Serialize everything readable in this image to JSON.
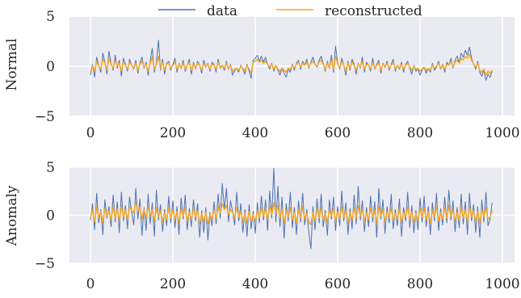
{
  "legend": {
    "placement": "top-center",
    "entries": [
      {
        "label": "data",
        "color": "#4c72b0"
      },
      {
        "label": "reconstructed",
        "color": "#f5a623"
      }
    ]
  },
  "style": {
    "axes_background": "#eaeaf2",
    "grid_color": "#ffffff",
    "data_color": "#4c72b0",
    "reconstructed_color": "#f5a623"
  },
  "chart_data": [
    {
      "type": "line",
      "ylabel": "Normal",
      "xlabel": "",
      "xlim": [
        0,
        1000
      ],
      "ylim": [
        -5,
        5
      ],
      "x_ticks": [
        0,
        200,
        400,
        600,
        800,
        1000
      ],
      "y_ticks": [
        -5,
        0,
        5
      ],
      "x_tick_labels": [
        "0",
        "200",
        "400",
        "600",
        "800",
        "1000"
      ],
      "y_tick_labels": [
        "−5",
        "0",
        "5"
      ],
      "grid": true,
      "x_step": 5,
      "series": [
        {
          "name": "data",
          "values": [
            -0.9,
            0.2,
            -1.1,
            0.9,
            0.1,
            -0.6,
            1.3,
            0.4,
            -0.8,
            1.5,
            0.3,
            -0.4,
            1.1,
            -0.2,
            0.6,
            -1.0,
            0.8,
            0.2,
            -0.5,
            0.7,
            0.1,
            -0.3,
            0.6,
            -0.7,
            0.3,
            0.9,
            -0.2,
            0.4,
            -0.9,
            0.5,
            1.8,
            -0.6,
            0.4,
            2.6,
            -0.4,
            0.7,
            -0.8,
            0.3,
            0.5,
            -0.4,
            0.2,
            0.8,
            -0.6,
            0.3,
            -0.2,
            0.6,
            -0.5,
            0.1,
            0.7,
            -0.8,
            0.4,
            -0.3,
            0.5,
            0.1,
            -0.7,
            0.6,
            -0.1,
            0.3,
            -0.5,
            0.4,
            0.2,
            -0.6,
            0.7,
            -0.2,
            0.1,
            -0.4,
            0.5,
            -0.3,
            0.2,
            -0.9,
            -0.4,
            -0.2,
            -0.6,
            0.1,
            -0.3,
            -0.8,
            0.2,
            -0.5,
            -1.2,
            0.6,
            0.8,
            1.1,
            0.5,
            1.0,
            0.4,
            0.9,
            0.2,
            -0.3,
            0.3,
            -0.5,
            0.1,
            -0.4,
            -0.9,
            -0.2,
            -0.7,
            -1.1,
            -0.3,
            -0.6,
            0.2,
            -0.4,
            0.3,
            0.6,
            -0.3,
            0.5,
            0.1,
            0.7,
            -0.2,
            0.4,
            0.9,
            0.2,
            -0.1,
            0.6,
            1.0,
            0.3,
            -0.5,
            0.5,
            -0.2,
            1.1,
            -0.6,
            2.0,
            0.4,
            -0.3,
            0.8,
            0.1,
            -0.9,
            0.5,
            -0.4,
            0.7,
            0.2,
            -0.8,
            0.3,
            -0.2,
            0.9,
            -0.6,
            0.4,
            0.1,
            -0.5,
            0.8,
            -0.3,
            0.2,
            0.6,
            -0.7,
            0.3,
            -0.1,
            0.5,
            -0.4,
            0.2,
            0.7,
            -0.5,
            0.1,
            -0.3,
            0.4,
            -0.6,
            0.2,
            0.5,
            -0.2,
            -0.8,
            0.1,
            -0.5,
            -0.3,
            -0.9,
            -0.4,
            -0.1,
            -0.7,
            -0.2,
            -0.6,
            0.3,
            -0.4,
            -0.1,
            0.5,
            -0.3,
            0.2,
            -0.6,
            0.4,
            0.1,
            0.8,
            -0.2,
            0.6,
            1.0,
            0.4,
            1.3,
            0.9,
            1.6,
            1.1,
            1.9,
            0.8,
            0.2,
            -0.3,
            0.5,
            -0.6,
            -1.0,
            -0.4,
            -1.4,
            -0.8,
            -1.1,
            -0.5
          ],
          "color": "#4c72b0"
        },
        {
          "name": "reconstructed",
          "values": [
            -0.6,
            0.1,
            -0.5,
            0.5,
            0.0,
            -0.3,
            0.7,
            0.3,
            -0.4,
            0.8,
            0.2,
            -0.2,
            0.6,
            0.0,
            0.3,
            -0.5,
            0.4,
            0.1,
            -0.3,
            0.4,
            0.1,
            -0.2,
            0.3,
            -0.4,
            0.2,
            0.5,
            -0.1,
            0.2,
            -0.5,
            0.3,
            0.9,
            -0.3,
            0.2,
            1.0,
            -0.2,
            0.4,
            -0.4,
            0.2,
            0.3,
            -0.2,
            0.1,
            0.4,
            -0.3,
            0.2,
            -0.1,
            0.3,
            -0.3,
            0.1,
            0.4,
            -0.4,
            0.2,
            -0.2,
            0.3,
            0.1,
            -0.4,
            0.3,
            0.0,
            0.2,
            -0.3,
            0.2,
            0.1,
            -0.3,
            0.4,
            -0.1,
            0.1,
            -0.2,
            0.3,
            -0.2,
            0.1,
            -0.5,
            -0.3,
            -0.2,
            -0.4,
            0.0,
            -0.2,
            -0.5,
            0.1,
            -0.3,
            -0.7,
            0.4,
            0.5,
            0.7,
            0.4,
            0.6,
            0.3,
            0.5,
            0.2,
            -0.1,
            0.2,
            -0.3,
            0.1,
            -0.3,
            -0.5,
            -0.2,
            -0.4,
            -0.6,
            -0.2,
            -0.3,
            0.1,
            -0.2,
            0.2,
            0.4,
            -0.1,
            0.3,
            0.1,
            0.4,
            -0.1,
            0.3,
            0.5,
            0.2,
            0.0,
            0.4,
            0.6,
            0.2,
            -0.3,
            0.3,
            -0.1,
            0.6,
            -0.3,
            1.0,
            0.3,
            -0.2,
            0.5,
            0.1,
            -0.5,
            0.3,
            -0.2,
            0.4,
            0.1,
            -0.4,
            0.2,
            -0.1,
            0.5,
            -0.3,
            0.2,
            0.1,
            -0.3,
            0.4,
            -0.2,
            0.1,
            0.3,
            -0.4,
            0.2,
            0.0,
            0.3,
            -0.2,
            0.1,
            0.4,
            -0.3,
            0.1,
            -0.2,
            0.2,
            -0.3,
            0.1,
            0.3,
            -0.1,
            -0.4,
            0.0,
            -0.3,
            -0.2,
            -0.5,
            -0.3,
            -0.1,
            -0.4,
            -0.2,
            -0.4,
            0.1,
            -0.2,
            0.0,
            0.3,
            -0.2,
            0.1,
            -0.3,
            0.2,
            0.1,
            0.5,
            -0.1,
            0.4,
            0.6,
            0.3,
            0.8,
            0.6,
            1.0,
            0.8,
            1.2,
            0.6,
            0.2,
            -0.1,
            0.3,
            -0.4,
            -0.6,
            -0.3,
            -0.9,
            -0.5,
            -0.7,
            -0.4
          ],
          "color": "#f5a623"
        }
      ]
    },
    {
      "type": "line",
      "ylabel": "Anomaly",
      "xlabel": "",
      "xlim": [
        0,
        1000
      ],
      "ylim": [
        -5,
        5
      ],
      "x_ticks": [
        0,
        200,
        400,
        600,
        800,
        1000
      ],
      "y_ticks": [
        -5,
        0,
        5
      ],
      "x_tick_labels": [
        "0",
        "200",
        "400",
        "600",
        "800",
        "1000"
      ],
      "y_tick_labels": [
        "−5",
        "0",
        "5"
      ],
      "grid": true,
      "x_step": 5,
      "series": [
        {
          "name": "data",
          "values": [
            -0.5,
            1.2,
            -1.5,
            2.3,
            -0.8,
            0.6,
            -2.0,
            1.6,
            -0.3,
            0.9,
            -1.2,
            2.1,
            -0.7,
            1.4,
            -1.8,
            2.4,
            -0.6,
            1.0,
            -1.4,
            1.9,
            0.3,
            -1.0,
            2.8,
            -0.4,
            1.7,
            -2.1,
            0.8,
            -1.6,
            2.2,
            -0.9,
            1.3,
            -2.2,
            2.6,
            -0.5,
            1.1,
            -1.7,
            0.6,
            -1.1,
            2.0,
            -0.8,
            1.5,
            -1.3,
            0.9,
            -2.0,
            1.8,
            -0.4,
            2.1,
            -1.5,
            0.7,
            -1.2,
            1.6,
            -0.6,
            1.2,
            -2.3,
            0.5,
            -1.8,
            0.8,
            -2.6,
            0.3,
            -1.1,
            1.4,
            -0.9,
            2.2,
            -0.3,
            3.3,
            0.6,
            2.8,
            -0.7,
            1.5,
            0.4,
            -1.0,
            2.4,
            -0.6,
            1.2,
            -1.8,
            0.6,
            -2.2,
            1.1,
            -1.4,
            0.4,
            -1.9,
            1.3,
            -0.8,
            2.0,
            -0.5,
            1.6,
            -1.6,
            2.5,
            -0.3,
            4.9,
            -0.7,
            3.0,
            -1.2,
            1.9,
            -2.4,
            1.2,
            -0.6,
            2.4,
            -1.3,
            0.8,
            -2.0,
            1.5,
            -0.7,
            2.3,
            -1.0,
            0.6,
            -1.8,
            -3.5,
            0.9,
            -1.5,
            1.7,
            -0.8,
            2.2,
            -1.2,
            0.5,
            -2.1,
            1.6,
            -0.4,
            1.9,
            -1.6,
            0.9,
            -1.1,
            2.5,
            -0.6,
            1.3,
            -2.0,
            0.7,
            -1.4,
            2.1,
            -0.9,
            3.0,
            -0.5,
            1.5,
            -1.7,
            0.8,
            -1.2,
            2.0,
            -0.7,
            1.4,
            -2.3,
            2.8,
            -0.4,
            1.6,
            -1.9,
            0.9,
            -0.8,
            2.2,
            -1.4,
            0.6,
            -1.1,
            1.7,
            -2.2,
            0.8,
            -0.6,
            2.4,
            -1.3,
            1.0,
            -1.8,
            0.5,
            -1.5,
            1.8,
            -0.7,
            2.0,
            -1.2,
            0.9,
            -2.0,
            1.3,
            -0.6,
            2.3,
            -1.6,
            0.7,
            -1.0,
            1.9,
            -0.8,
            2.6,
            -0.5,
            1.5,
            -1.7,
            0.8,
            -1.3,
            2.2,
            -0.9,
            1.4,
            -2.0,
            2.3,
            -0.6,
            1.1,
            -1.8,
            0.9,
            -2.3,
            1.6,
            -0.7,
            2.4,
            -1.1,
            -0.4,
            1.3
          ],
          "color": "#4c72b0"
        },
        {
          "name": "reconstructed",
          "values": [
            -0.3,
            0.6,
            -0.7,
            0.9,
            -0.3,
            0.4,
            -0.8,
            0.7,
            -0.1,
            0.5,
            -0.5,
            0.9,
            -0.3,
            0.7,
            -0.6,
            1.0,
            -0.2,
            0.6,
            -0.5,
            0.9,
            0.5,
            0.2,
            1.3,
            0.4,
            0.9,
            -0.4,
            0.6,
            -0.3,
            0.9,
            0.0,
            0.6,
            -0.6,
            0.8,
            -0.2,
            0.5,
            -0.7,
            0.3,
            -0.5,
            0.8,
            -0.3,
            0.6,
            -0.5,
            0.4,
            -0.8,
            0.7,
            -0.1,
            0.8,
            -0.6,
            0.3,
            -0.5,
            0.7,
            -0.2,
            0.5,
            -0.9,
            0.2,
            -0.7,
            0.3,
            -0.9,
            0.1,
            -0.4,
            0.6,
            -0.3,
            0.9,
            0.2,
            1.2,
            0.6,
            1.0,
            0.1,
            0.6,
            0.3,
            -0.3,
            0.8,
            -0.2,
            0.4,
            -0.7,
            0.2,
            -0.8,
            0.4,
            -0.6,
            0.1,
            -0.7,
            0.5,
            -0.3,
            0.8,
            -0.1,
            0.7,
            -0.5,
            1.0,
            0.1,
            1.3,
            0.2,
            1.0,
            -0.3,
            0.7,
            -0.8,
            0.5,
            -0.2,
            0.8,
            -0.5,
            0.3,
            -0.8,
            0.6,
            -0.3,
            0.9,
            -0.4,
            0.2,
            -0.7,
            -1.0,
            0.3,
            -0.6,
            0.7,
            -0.3,
            0.8,
            -0.5,
            0.2,
            -0.8,
            0.6,
            -0.1,
            0.7,
            -0.6,
            0.4,
            -0.4,
            0.9,
            -0.2,
            0.5,
            -0.8,
            0.3,
            -0.5,
            0.8,
            -0.3,
            1.0,
            -0.1,
            0.6,
            -0.6,
            0.3,
            -0.5,
            0.8,
            -0.2,
            0.5,
            -0.9,
            0.9,
            -0.1,
            0.6,
            -0.7,
            0.4,
            -0.3,
            0.8,
            -0.5,
            0.2,
            -0.4,
            0.7,
            -0.8,
            0.3,
            -0.2,
            0.9,
            -0.5,
            0.4,
            -0.7,
            0.2,
            -0.6,
            0.7,
            -0.2,
            0.8,
            -0.5,
            0.4,
            -0.8,
            0.5,
            -0.2,
            0.9,
            -0.6,
            0.3,
            -0.4,
            0.8,
            -0.3,
            1.0,
            -0.1,
            0.6,
            -0.6,
            0.3,
            -0.5,
            0.9,
            -0.3,
            0.6,
            -0.7,
            0.9,
            -0.2,
            0.5,
            -0.7,
            0.4,
            -0.8,
            0.6,
            -0.2,
            0.8,
            -0.4,
            -0.2,
            0.5
          ],
          "color": "#f5a623"
        }
      ]
    }
  ]
}
